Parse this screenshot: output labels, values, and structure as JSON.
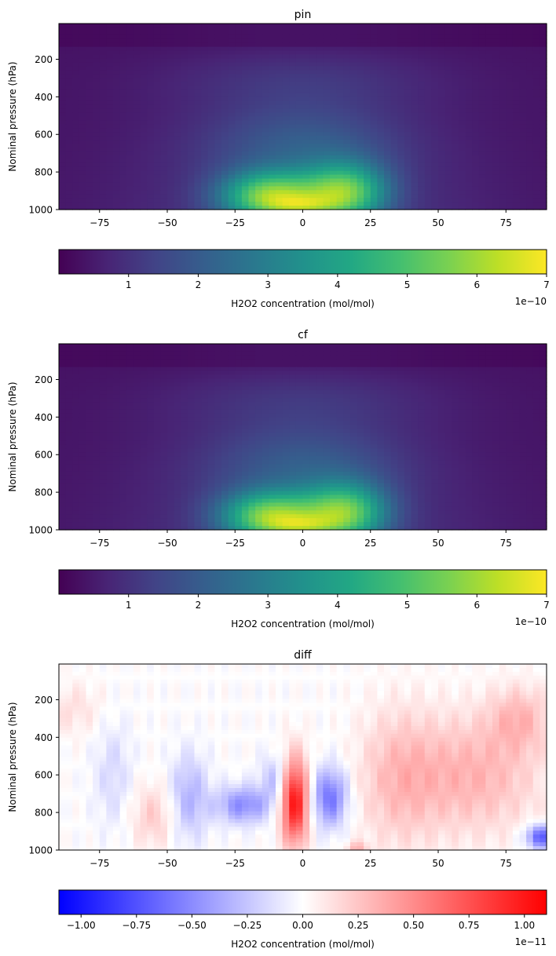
{
  "chart_data": [
    {
      "type": "heatmap",
      "title": "pin",
      "ylabel": "Nominal pressure (hPa)",
      "xlim": [
        -90,
        90
      ],
      "ylim_inverted": [
        1000,
        10
      ],
      "xticks": [
        "−75",
        "−50",
        "−25",
        "0",
        "25",
        "50",
        "75"
      ],
      "xtick_values": [
        -75,
        -50,
        -25,
        0,
        25,
        50,
        75
      ],
      "yticks": [
        "200",
        "400",
        "600",
        "800",
        "1000"
      ],
      "ytick_values": [
        200,
        400,
        600,
        800,
        1000
      ],
      "colormap": "viridis",
      "colorbar": {
        "label": "H2O2 concentration (mol/mol)",
        "ticks": [
          "1",
          "2",
          "3",
          "4",
          "5",
          "6",
          "7"
        ],
        "tick_values": [
          1,
          2,
          3,
          4,
          5,
          6,
          7
        ],
        "range": [
          0,
          7
        ],
        "offset_text": "1e−10"
      },
      "field_description": "maximum ~7e-10 near surface at equator (lat -20 to 20, 850-1000 hPa), decreasing with altitude and latitude; minimum in upper troposphere/stratosphere"
    },
    {
      "type": "heatmap",
      "title": "cf",
      "ylabel": "Nominal pressure (hPa)",
      "xlim": [
        -90,
        90
      ],
      "ylim_inverted": [
        1000,
        10
      ],
      "xticks": [
        "−75",
        "−50",
        "−25",
        "0",
        "25",
        "50",
        "75"
      ],
      "xtick_values": [
        -75,
        -50,
        -25,
        0,
        25,
        50,
        75
      ],
      "yticks": [
        "200",
        "400",
        "600",
        "800",
        "1000"
      ],
      "ytick_values": [
        200,
        400,
        600,
        800,
        1000
      ],
      "colormap": "viridis",
      "colorbar": {
        "label": "H2O2 concentration (mol/mol)",
        "ticks": [
          "1",
          "2",
          "3",
          "4",
          "5",
          "6",
          "7"
        ],
        "tick_values": [
          1,
          2,
          3,
          4,
          5,
          6,
          7
        ],
        "range": [
          0,
          7
        ],
        "offset_text": "1e−10"
      },
      "field_description": "nearly identical to pin"
    },
    {
      "type": "heatmap",
      "title": "diff",
      "ylabel": "Nominal pressure (hPa)",
      "xlim": [
        -90,
        90
      ],
      "ylim_inverted": [
        1000,
        10
      ],
      "xticks": [
        "−75",
        "−50",
        "−25",
        "0",
        "25",
        "50",
        "75"
      ],
      "xtick_values": [
        -75,
        -50,
        -25,
        0,
        25,
        50,
        75
      ],
      "yticks": [
        "200",
        "400",
        "600",
        "800",
        "1000"
      ],
      "ytick_values": [
        200,
        400,
        600,
        800,
        1000
      ],
      "colormap": "bwr",
      "colorbar": {
        "label": "H2O2 concentration (mol/mol)",
        "ticks": [
          "−1.00",
          "−0.75",
          "−0.50",
          "−0.25",
          "0.00",
          "0.25",
          "0.50",
          "0.75",
          "1.00"
        ],
        "tick_values": [
          -1.0,
          -0.75,
          -0.5,
          -0.25,
          0.0,
          0.25,
          0.5,
          0.75,
          1.0
        ],
        "range": [
          -1.1,
          1.1
        ],
        "offset_text": "1e−11"
      },
      "field_description": "strong positive column at lat ~-3, 500-950 hPa; negative patches at lat ~10 (600-850 hPa), lat ~-20 (700-800 hPa), lat 85-90 (~920 hPa); weak positive regions at lat 40-90 (300-800 hPa)"
    }
  ]
}
